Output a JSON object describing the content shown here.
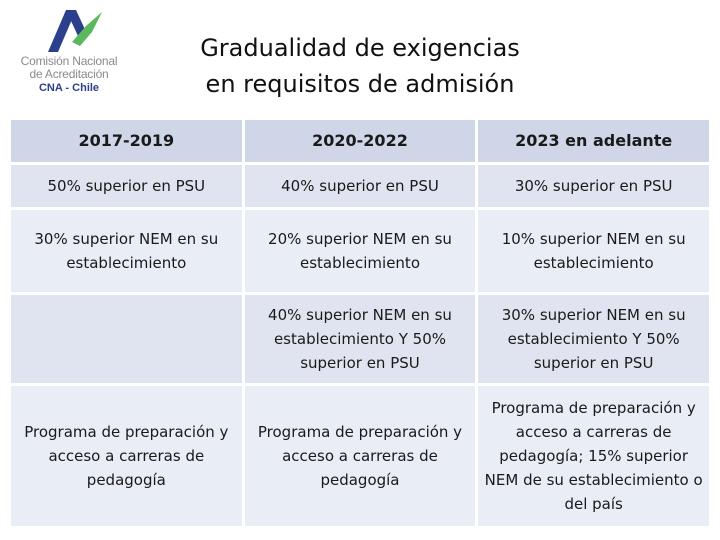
{
  "logo": {
    "line1": "Comisión Nacional",
    "line2": "de Acreditación",
    "line3": "CNA - Chile"
  },
  "title": {
    "line1": "Gradualidad de exigencias",
    "line2": "en requisitos de admisión"
  },
  "table": {
    "headers": [
      "2017-2019",
      "2020-2022",
      "2023 en adelante"
    ],
    "rows": [
      [
        "50% superior en PSU",
        "40% superior en PSU",
        "30% superior en PSU"
      ],
      [
        "30% superior NEM en su establecimiento",
        "20% superior NEM en su establecimiento",
        "10% superior NEM en su establecimiento"
      ],
      [
        "",
        "40% superior NEM en su establecimiento  Y  50% superior en PSU",
        "30% superior NEM en su establecimiento  Y  50% superior en PSU"
      ],
      [
        "Programa de preparación y acceso a carreras de pedagogía",
        "Programa de preparación y acceso a carreras de pedagogía",
        "Programa de preparación y acceso a carreras de pedagogía; 15% superior NEM de su establecimiento o del país"
      ]
    ]
  },
  "colors": {
    "header_bg": "#cfd6e8",
    "row_bg_a": "#e9edf5",
    "row_bg_b": "#dfe4f0",
    "logo_blue": "#2b3f8c",
    "logo_green": "#5cb85c",
    "logo_gray": "#8a8a8a"
  }
}
